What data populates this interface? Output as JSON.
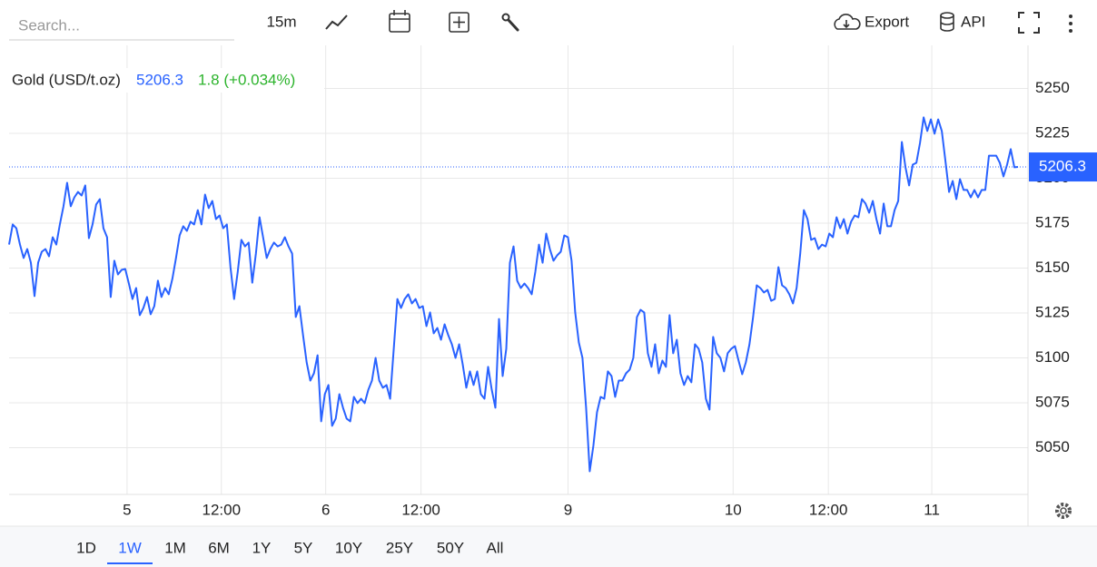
{
  "toolbar": {
    "search_placeholder": "Search...",
    "interval": "15m",
    "export": "Export",
    "api": "API"
  },
  "chart_data": {
    "type": "line",
    "title": "Gold (USD/t.oz)",
    "last_price": 5206.3,
    "change": "1.8 (+0.034%)",
    "color": "#2962ff",
    "grid": true,
    "ylim": [
      5024,
      5274
    ],
    "yticks": [
      5050,
      5075,
      5100,
      5125,
      5150,
      5175,
      5200,
      5225,
      5250
    ],
    "xlim": [
      0,
      277
    ],
    "xticks": [
      {
        "value": 32.5,
        "label": "5"
      },
      {
        "value": 58.5,
        "label": "12:00"
      },
      {
        "value": 87.25,
        "label": "6"
      },
      {
        "value": 113.5,
        "label": "12:00"
      },
      {
        "value": 154,
        "label": "9"
      },
      {
        "value": 199.5,
        "label": "10"
      },
      {
        "value": 225.75,
        "label": "12:00"
      },
      {
        "value": 254.25,
        "label": "11"
      }
    ],
    "values": [
      5163.1,
      5174.3,
      5172.2,
      5163.1,
      5155.6,
      5160.6,
      5153.0,
      5134.4,
      5153.0,
      5159.1,
      5160.6,
      5156.6,
      5167.2,
      5163.1,
      5174.3,
      5184.4,
      5197.5,
      5184.4,
      5189.4,
      5192.4,
      5190.4,
      5196.0,
      5166.7,
      5174.3,
      5185.4,
      5188.4,
      5172.2,
      5167.2,
      5133.9,
      5154.1,
      5146.5,
      5149.0,
      5149.5,
      5141.4,
      5132.8,
      5138.9,
      5123.8,
      5127.8,
      5133.9,
      5124.3,
      5128.8,
      5143.0,
      5133.9,
      5138.9,
      5135.4,
      5144.0,
      5155.6,
      5168.2,
      5173.3,
      5170.7,
      5175.8,
      5174.3,
      5182.3,
      5174.3,
      5190.9,
      5183.4,
      5187.4,
      5177.3,
      5179.3,
      5172.2,
      5174.3,
      5150.5,
      5132.8,
      5148.0,
      5165.7,
      5162.1,
      5164.2,
      5141.9,
      5158.1,
      5178.3,
      5167.2,
      5155.6,
      5160.6,
      5164.2,
      5162.1,
      5163.1,
      5167.2,
      5162.1,
      5158.1,
      5122.8,
      5128.8,
      5112.7,
      5097.5,
      5087.4,
      5091.4,
      5101.5,
      5064.7,
      5079.8,
      5084.9,
      5062.2,
      5066.2,
      5079.8,
      5072.3,
      5066.2,
      5064.7,
      5078.3,
      5074.8,
      5077.3,
      5074.8,
      5082.3,
      5087.4,
      5100.0,
      5087.4,
      5083.4,
      5084.9,
      5077.3,
      5105.1,
      5132.8,
      5127.8,
      5132.8,
      5135.4,
      5130.3,
      5132.8,
      5127.8,
      5128.8,
      5117.7,
      5125.3,
      5113.7,
      5116.7,
      5110.1,
      5118.7,
      5112.7,
      5107.6,
      5100.0,
      5107.6,
      5096.5,
      5083.4,
      5092.5,
      5084.9,
      5092.5,
      5079.8,
      5077.3,
      5095.0,
      5082.3,
      5072.3,
      5121.7,
      5089.9,
      5105.1,
      5153.0,
      5162.1,
      5143.0,
      5138.9,
      5141.4,
      5138.9,
      5135.4,
      5148.0,
      5163.1,
      5153.0,
      5169.2,
      5160.6,
      5154.1,
      5157.1,
      5159.1,
      5168.2,
      5167.2,
      5154.1,
      5125.3,
      5108.6,
      5100.0,
      5072.3,
      5036.9,
      5051.0,
      5069.7,
      5078.3,
      5077.3,
      5092.5,
      5089.9,
      5078.3,
      5087.4,
      5087.4,
      5091.4,
      5093.5,
      5100.0,
      5122.8,
      5126.8,
      5125.3,
      5102.6,
      5095.0,
      5107.6,
      5091.4,
      5098.5,
      5095.0,
      5123.8,
      5102.6,
      5110.1,
      5091.4,
      5084.9,
      5089.9,
      5086.4,
      5107.6,
      5105.1,
      5097.5,
      5077.3,
      5071.2,
      5111.7,
      5102.6,
      5100.0,
      5092.5,
      5102.6,
      5105.1,
      5106.6,
      5098.5,
      5090.9,
      5097.5,
      5107.6,
      5122.8,
      5140.4,
      5138.9,
      5136.4,
      5137.9,
      5131.8,
      5132.8,
      5150.5,
      5140.4,
      5138.9,
      5135.4,
      5130.3,
      5138.9,
      5158.1,
      5182.3,
      5177.3,
      5165.7,
      5166.7,
      5160.6,
      5163.1,
      5162.1,
      5169.2,
      5167.2,
      5178.3,
      5172.2,
      5177.3,
      5169.2,
      5175.8,
      5179.3,
      5178.3,
      5188.4,
      5185.9,
      5180.8,
      5187.4,
      5177.3,
      5169.2,
      5185.9,
      5173.3,
      5173.3,
      5182.3,
      5187.4,
      5220.2,
      5206.1,
      5196.0,
      5207.6,
      5208.6,
      5219.7,
      5233.9,
      5226.3,
      5232.8,
      5224.8,
      5232.8,
      5226.3,
      5209.6,
      5192.4,
      5198.5,
      5188.4,
      5199.5,
      5193.5,
      5193.5,
      5189.4,
      5193.5,
      5189.4,
      5193.5,
      5193.5,
      5212.6,
      5212.6,
      5212.6,
      5208.6,
      5201.0,
      5207.6,
      5216.2,
      5206.1,
      5206.3
    ]
  },
  "ranges": {
    "options": [
      "1D",
      "1W",
      "1M",
      "6M",
      "1Y",
      "5Y",
      "10Y",
      "25Y",
      "50Y",
      "All"
    ],
    "selected_index": 1
  }
}
